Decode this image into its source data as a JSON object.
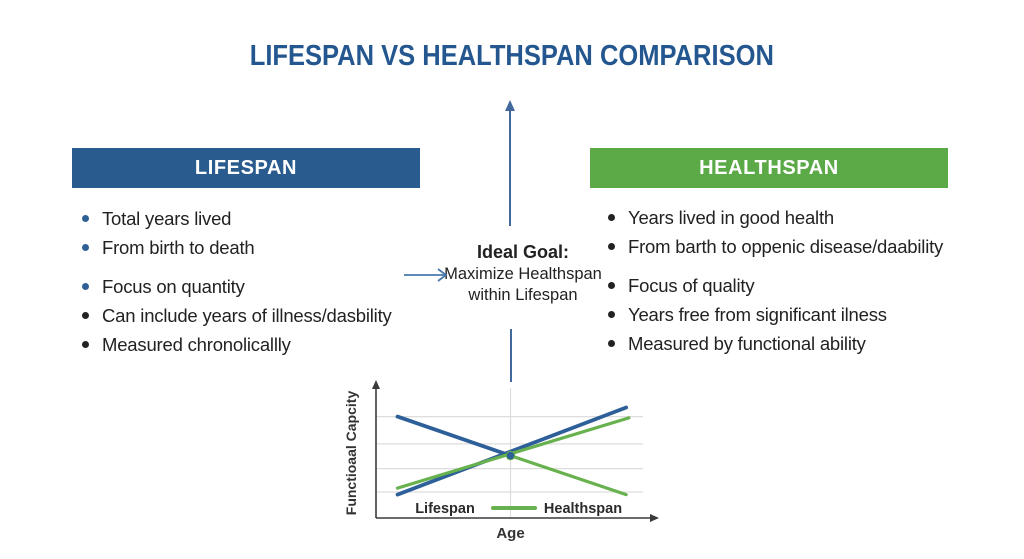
{
  "title": "LIFESPAN VS HEALTHSPAN COMPARISON",
  "colors": {
    "title": "#24578f",
    "text": "#222222",
    "bar_blue": "#2a5b8e",
    "bar_green": "#5baa47",
    "bullet_blue": "#2e6095",
    "arrow": "#41699e",
    "chart_blue": "#2d5f99",
    "chart_green": "#67b14e",
    "grid": "#dddddd",
    "axis": "#3a3a3a"
  },
  "left_panel": {
    "header": "LIFESPAN",
    "items": [
      "Total years lived",
      "From birth to death",
      "Focus on quantity",
      "Can include years of illness/dasbility",
      "Measured chronolicallly"
    ]
  },
  "right_panel": {
    "header": "HEALTHSPAN",
    "items": [
      "Years lived in good health",
      "From barth to oppenic disease/daability",
      "Focus of quality",
      "Years free from significant ilness",
      "Measured by functional ability"
    ]
  },
  "goal": {
    "heading": "Ideal Goal:",
    "line1": "Maximize Healthspan",
    "line2": "within Lifespan"
  },
  "chart_data": {
    "type": "line",
    "title": "",
    "xlabel": "Age",
    "ylabel": "Functioaal Capcity",
    "x_range": [
      0,
      100
    ],
    "y_range": [
      0,
      100
    ],
    "grid": true,
    "h_gridlines": [
      78,
      57,
      38,
      20
    ],
    "v_gridlines": [
      50
    ],
    "series": [
      {
        "name": "Lifespan",
        "color": "#2d5f99",
        "segments": [
          [
            [
              8,
              78
            ],
            [
              50,
              48
            ]
          ],
          [
            [
              8,
              18
            ],
            [
              93,
              85
            ]
          ]
        ]
      },
      {
        "name": "Healthspan",
        "color": "#67b14e",
        "segments": [
          [
            [
              50,
              48
            ],
            [
              93,
              18
            ]
          ],
          [
            [
              8,
              23
            ],
            [
              94,
              77
            ]
          ]
        ]
      }
    ],
    "crossing_point": [
      50,
      48
    ],
    "legend_position": "bottom-inside",
    "legend": [
      {
        "label": "Lifespan",
        "swatch": null
      },
      {
        "label": "Healthspan",
        "swatch": "#67b14e"
      }
    ]
  }
}
